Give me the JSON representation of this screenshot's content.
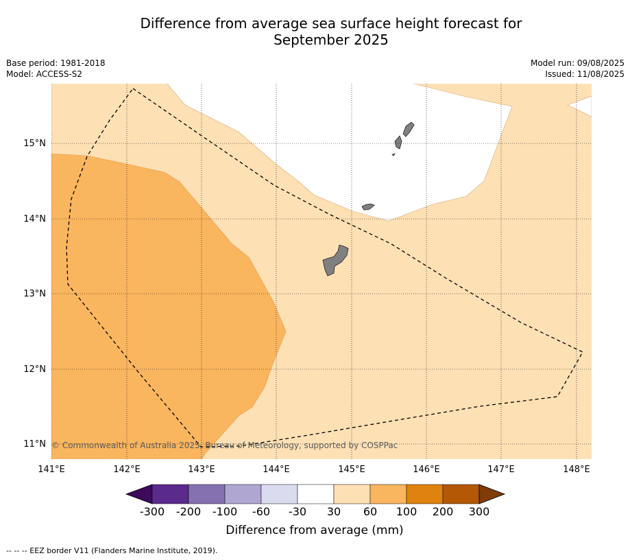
{
  "title_line1": "Difference from average sea surface height forecast for",
  "title_line2": "September 2025",
  "meta_left": {
    "base_period": "Base period: 1981-2018",
    "model": "Model: ACCESS-S2"
  },
  "meta_right": {
    "model_run": "Model run: 09/08/2025",
    "issued": "Issued: 11/08/2025"
  },
  "map": {
    "lon_labels": [
      "141°E",
      "142°E",
      "143°E",
      "144°E",
      "145°E",
      "146°E",
      "147°E",
      "148°E"
    ],
    "lat_labels": [
      "15°N",
      "14°N",
      "13°N",
      "12°N",
      "11°N"
    ],
    "copyright": "© Commonwealth of Australia 2025, Bureau of Meteorology, supported by COSPPac",
    "land_color": "#808080"
  },
  "colorbar": {
    "tick_labels": [
      "-300",
      "-200",
      "-100",
      "-60",
      "-30",
      "30",
      "60",
      "100",
      "200",
      "300"
    ],
    "colors": [
      "#3d0a5c",
      "#5a2a8c",
      "#8471b0",
      "#afa6d2",
      "#dadbee",
      "#ffffff",
      "#fde0b4",
      "#fab55f",
      "#e0820e",
      "#b35805",
      "#7f3b08"
    ],
    "label": "Difference from average (mm)"
  },
  "footer": "--  --  -- EEZ border V11 (Flanders Marine Institute, 2019)."
}
